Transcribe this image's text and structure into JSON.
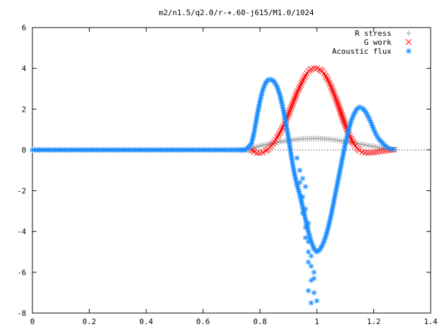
{
  "chart_data": {
    "type": "scatter",
    "title": "m2/n1.5/q2.0/r-+.60-j615/M1.0/1024",
    "xlabel": "",
    "ylabel": "",
    "xlim": [
      0,
      1.4
    ],
    "ylim": [
      -8,
      6
    ],
    "xticks": [
      "0",
      "0.2",
      "0.4",
      "0.6",
      "0.8",
      "1",
      "1.2",
      "1.4"
    ],
    "yticks": [
      "6",
      "4",
      "2",
      "0",
      "-2",
      "-4",
      "-6",
      "-8"
    ],
    "grid": false,
    "legend_position": "top-right",
    "series": [
      {
        "name": "R stress",
        "marker": "plus",
        "color": "#a0a0a0",
        "x": [
          0.0,
          0.1,
          0.2,
          0.3,
          0.4,
          0.5,
          0.6,
          0.7,
          0.76,
          0.78,
          0.8,
          0.82,
          0.84,
          0.86,
          0.88,
          0.9,
          0.92,
          0.94,
          0.96,
          0.98,
          1.0,
          1.02,
          1.04,
          1.06,
          1.08,
          1.1,
          1.12,
          1.14,
          1.16,
          1.18,
          1.2,
          1.22,
          1.24,
          1.26,
          1.28
        ],
        "y": [
          0,
          0,
          0,
          0,
          0,
          0,
          0,
          0,
          0,
          0.12,
          0.2,
          0.26,
          0.32,
          0.37,
          0.42,
          0.46,
          0.5,
          0.53,
          0.55,
          0.56,
          0.56,
          0.55,
          0.53,
          0.5,
          0.46,
          0.42,
          0.37,
          0.32,
          0.27,
          0.22,
          0.17,
          0.12,
          0.08,
          0.04,
          0.01
        ]
      },
      {
        "name": "G work",
        "marker": "cross",
        "color": "#ff0000",
        "x": [
          0.77,
          0.78,
          0.79,
          0.8,
          0.81,
          0.82,
          0.83,
          0.84,
          0.85,
          0.86,
          0.87,
          0.88,
          0.89,
          0.9,
          0.91,
          0.92,
          0.93,
          0.94,
          0.95,
          0.96,
          0.97,
          0.98,
          0.99,
          1.0,
          1.01,
          1.02,
          1.03,
          1.04,
          1.05,
          1.06,
          1.07,
          1.08,
          1.09,
          1.1,
          1.11,
          1.12,
          1.13,
          1.14,
          1.15,
          1.16,
          1.17,
          1.18,
          1.19,
          1.2,
          1.21,
          1.22,
          1.23,
          1.24,
          1.25,
          1.26,
          1.27
        ],
        "y": [
          0.0,
          -0.1,
          -0.15,
          -0.15,
          -0.12,
          -0.05,
          0.05,
          0.2,
          0.4,
          0.6,
          0.85,
          1.1,
          1.4,
          1.75,
          2.1,
          2.45,
          2.8,
          3.1,
          3.4,
          3.65,
          3.85,
          3.97,
          4.0,
          4.0,
          3.95,
          3.85,
          3.65,
          3.4,
          3.1,
          2.75,
          2.4,
          2.0,
          1.6,
          1.2,
          0.85,
          0.55,
          0.3,
          0.1,
          -0.03,
          -0.1,
          -0.13,
          -0.14,
          -0.13,
          -0.12,
          -0.1,
          -0.08,
          -0.06,
          -0.04,
          -0.02,
          0.0,
          0.02
        ]
      },
      {
        "name": "Acoustic flux",
        "marker": "star",
        "color": "#1a8cff",
        "x": [
          0.0,
          0.05,
          0.1,
          0.15,
          0.2,
          0.25,
          0.3,
          0.35,
          0.4,
          0.45,
          0.5,
          0.55,
          0.6,
          0.65,
          0.7,
          0.75,
          0.77,
          0.78,
          0.79,
          0.8,
          0.81,
          0.82,
          0.83,
          0.84,
          0.85,
          0.86,
          0.87,
          0.88,
          0.89,
          0.9,
          0.91,
          0.92,
          0.93,
          0.94,
          0.95,
          0.96,
          0.97,
          0.98,
          0.99,
          1.0,
          1.01,
          1.02,
          1.03,
          1.04,
          1.05,
          1.06,
          1.07,
          1.08,
          1.09,
          1.1,
          1.11,
          1.12,
          1.13,
          1.14,
          1.15,
          1.16,
          1.17,
          1.18,
          1.19,
          1.2,
          1.21,
          1.22,
          1.23,
          1.24,
          1.25,
          1.26,
          1.27,
          0.94,
          0.95,
          0.96,
          0.97,
          0.95,
          0.96,
          0.97,
          0.98,
          0.96,
          0.97,
          0.98,
          0.99,
          0.97,
          0.98,
          0.99,
          1.0,
          0.97,
          0.98,
          0.99,
          0.96,
          0.95,
          0.94,
          0.93
        ],
        "y": [
          0,
          0,
          0,
          0,
          0,
          0,
          0,
          0,
          0,
          0,
          0,
          0,
          0,
          0,
          0,
          0,
          0.3,
          0.9,
          1.7,
          2.4,
          2.95,
          3.3,
          3.45,
          3.45,
          3.35,
          3.1,
          2.7,
          2.1,
          1.4,
          0.6,
          -0.3,
          -1.1,
          -1.7,
          -2.2,
          -2.8,
          -3.4,
          -4.0,
          -4.5,
          -4.85,
          -5.0,
          -4.9,
          -4.65,
          -4.3,
          -3.8,
          -3.2,
          -2.5,
          -1.8,
          -1.1,
          -0.4,
          0.3,
          0.9,
          1.4,
          1.75,
          2.0,
          2.1,
          2.05,
          1.9,
          1.65,
          1.35,
          1.0,
          0.7,
          0.5,
          0.35,
          0.2,
          0.1,
          0.05,
          0.02,
          -1.6,
          -2.3,
          -2.9,
          -3.6,
          -3.1,
          -3.8,
          -4.5,
          -5.2,
          -4.3,
          -5.0,
          -5.7,
          -6.3,
          -5.5,
          -6.4,
          -7.0,
          -7.4,
          -6.9,
          -7.5,
          -6.0,
          -1.8,
          -1.4,
          -1.0,
          -0.4
        ]
      }
    ]
  }
}
